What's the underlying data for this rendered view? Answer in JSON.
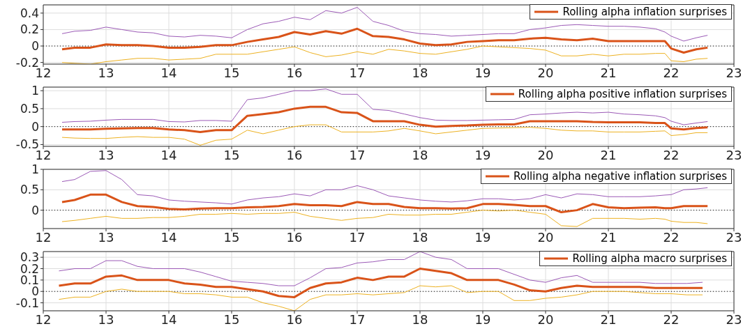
{
  "chart_data": [
    {
      "type": "line",
      "xlim": [
        12,
        23
      ],
      "xticks": [
        12,
        13,
        14,
        15,
        16,
        17,
        18,
        19,
        20,
        21,
        22,
        23
      ],
      "ylim": [
        -0.22,
        0.5
      ],
      "yticks": [
        -0.2,
        0,
        0.2,
        0.4
      ],
      "grid": true,
      "legend": "top right",
      "marker": "none",
      "line_style": "solid",
      "ref_lines": [
        {
          "axis": "y",
          "value": 0,
          "color": "#000000",
          "line_style": "dotted"
        }
      ],
      "x": [
        12.3,
        12.5,
        12.75,
        13,
        13.25,
        13.5,
        13.75,
        14,
        14.25,
        14.5,
        14.75,
        15,
        15.25,
        15.5,
        15.75,
        16,
        16.25,
        16.5,
        16.75,
        17,
        17.25,
        17.5,
        17.75,
        18,
        18.25,
        18.5,
        18.75,
        19,
        19.25,
        19.5,
        19.75,
        20,
        20.25,
        20.5,
        20.75,
        21,
        21.25,
        21.5,
        21.75,
        21.9,
        22,
        22.2,
        22.4,
        22.58
      ],
      "series": [
        {
          "name": "Rolling alpha inflation surprises",
          "color": "#d95319",
          "values": [
            -0.04,
            -0.02,
            -0.02,
            0.02,
            0.01,
            0.01,
            0.0,
            -0.02,
            -0.02,
            -0.01,
            0.01,
            0.01,
            0.05,
            0.08,
            0.11,
            0.17,
            0.14,
            0.18,
            0.15,
            0.21,
            0.12,
            0.11,
            0.08,
            0.03,
            0.01,
            0.02,
            0.05,
            0.06,
            0.07,
            0.07,
            0.09,
            0.1,
            0.08,
            0.07,
            0.09,
            0.06,
            0.06,
            0.06,
            0.06,
            0.06,
            -0.03,
            -0.08,
            -0.04,
            -0.02
          ]
        },
        {
          "color": "#9b59b6",
          "values": [
            0.15,
            0.18,
            0.19,
            0.23,
            0.2,
            0.17,
            0.16,
            0.12,
            0.11,
            0.13,
            0.12,
            0.1,
            0.2,
            0.27,
            0.3,
            0.35,
            0.32,
            0.43,
            0.4,
            0.47,
            0.3,
            0.25,
            0.18,
            0.15,
            0.14,
            0.12,
            0.13,
            0.14,
            0.15,
            0.15,
            0.2,
            0.22,
            0.25,
            0.26,
            0.25,
            0.24,
            0.24,
            0.23,
            0.21,
            0.17,
            0.12,
            0.06,
            0.1,
            0.13
          ]
        },
        {
          "color": "#edb120",
          "values": [
            -0.2,
            -0.21,
            -0.22,
            -0.19,
            -0.17,
            -0.15,
            -0.15,
            -0.17,
            -0.16,
            -0.15,
            -0.1,
            -0.1,
            -0.1,
            -0.07,
            -0.04,
            -0.01,
            -0.08,
            -0.13,
            -0.11,
            -0.07,
            -0.1,
            -0.04,
            -0.06,
            -0.09,
            -0.1,
            -0.07,
            -0.04,
            0.0,
            -0.01,
            -0.02,
            -0.03,
            -0.05,
            -0.12,
            -0.12,
            -0.1,
            -0.12,
            -0.1,
            -0.1,
            -0.09,
            -0.09,
            -0.18,
            -0.19,
            -0.16,
            -0.15
          ]
        }
      ]
    },
    {
      "type": "line",
      "xlim": [
        12,
        23
      ],
      "xticks": [
        12,
        13,
        14,
        15,
        16,
        17,
        18,
        19,
        20,
        21,
        22,
        23
      ],
      "ylim": [
        -0.55,
        1.1
      ],
      "yticks": [
        -0.5,
        0,
        0.5,
        1
      ],
      "grid": true,
      "legend": "top right",
      "marker": "none",
      "line_style": "solid",
      "ref_lines": [
        {
          "axis": "y",
          "value": 0,
          "color": "#000000",
          "line_style": "dotted"
        }
      ],
      "x": [
        12.3,
        12.5,
        12.75,
        13,
        13.25,
        13.5,
        13.75,
        14,
        14.25,
        14.5,
        14.75,
        15,
        15.25,
        15.5,
        15.75,
        16,
        16.25,
        16.5,
        16.75,
        17,
        17.25,
        17.5,
        17.75,
        18,
        18.25,
        18.5,
        18.75,
        19,
        19.25,
        19.5,
        19.75,
        20,
        20.25,
        20.5,
        20.75,
        21,
        21.25,
        21.5,
        21.75,
        21.9,
        22,
        22.2,
        22.4,
        22.58
      ],
      "series": [
        {
          "name": "Rolling alpha positive inflation surprises",
          "color": "#d95319",
          "values": [
            -0.08,
            -0.08,
            -0.08,
            -0.06,
            -0.05,
            -0.04,
            -0.04,
            -0.08,
            -0.1,
            -0.15,
            -0.1,
            -0.1,
            0.3,
            0.35,
            0.4,
            0.5,
            0.55,
            0.55,
            0.4,
            0.38,
            0.15,
            0.15,
            0.15,
            0.05,
            0.0,
            0.02,
            0.03,
            0.05,
            0.06,
            0.06,
            0.15,
            0.15,
            0.15,
            0.15,
            0.13,
            0.12,
            0.12,
            0.12,
            0.1,
            0.1,
            -0.05,
            -0.08,
            -0.04,
            -0.02
          ]
        },
        {
          "color": "#9b59b6",
          "values": [
            0.12,
            0.14,
            0.15,
            0.18,
            0.2,
            0.2,
            0.2,
            0.14,
            0.13,
            0.17,
            0.17,
            0.15,
            0.75,
            0.8,
            0.9,
            1.0,
            1.0,
            1.05,
            0.9,
            0.9,
            0.48,
            0.45,
            0.35,
            0.25,
            0.18,
            0.17,
            0.17,
            0.18,
            0.19,
            0.2,
            0.33,
            0.35,
            0.38,
            0.4,
            0.38,
            0.4,
            0.35,
            0.33,
            0.3,
            0.25,
            0.15,
            0.05,
            0.1,
            0.14
          ]
        },
        {
          "color": "#edb120",
          "values": [
            -0.3,
            -0.32,
            -0.33,
            -0.33,
            -0.3,
            -0.28,
            -0.3,
            -0.3,
            -0.35,
            -0.52,
            -0.38,
            -0.35,
            -0.1,
            -0.2,
            -0.1,
            0.0,
            0.05,
            0.05,
            -0.15,
            -0.15,
            -0.15,
            -0.12,
            -0.05,
            -0.12,
            -0.2,
            -0.15,
            -0.1,
            -0.05,
            -0.04,
            -0.03,
            -0.02,
            -0.05,
            -0.1,
            -0.12,
            -0.12,
            -0.15,
            -0.15,
            -0.15,
            -0.13,
            -0.12,
            -0.25,
            -0.22,
            -0.17,
            -0.17
          ]
        }
      ]
    },
    {
      "type": "line",
      "xlim": [
        12,
        23
      ],
      "xticks": [
        12,
        13,
        14,
        15,
        16,
        17,
        18,
        19,
        20,
        21,
        22,
        23
      ],
      "ylim": [
        -0.45,
        1
      ],
      "yticks": [
        0,
        0.5,
        1
      ],
      "grid": true,
      "legend": "top right",
      "marker": "none",
      "line_style": "solid",
      "ref_lines": [
        {
          "axis": "y",
          "value": 0,
          "color": "#000000",
          "line_style": "dotted"
        }
      ],
      "x": [
        12.3,
        12.5,
        12.75,
        13,
        13.25,
        13.5,
        13.75,
        14,
        14.25,
        14.5,
        14.75,
        15,
        15.25,
        15.5,
        15.75,
        16,
        16.25,
        16.5,
        16.75,
        17,
        17.25,
        17.5,
        17.75,
        18,
        18.25,
        18.5,
        18.75,
        19,
        19.25,
        19.5,
        19.75,
        20,
        20.25,
        20.5,
        20.75,
        21,
        21.25,
        21.5,
        21.75,
        21.9,
        22,
        22.2,
        22.4,
        22.58
      ],
      "series": [
        {
          "name": "Rolling alpha negative inflation surprises",
          "color": "#d95319",
          "values": [
            0.2,
            0.25,
            0.38,
            0.38,
            0.2,
            0.1,
            0.08,
            0.03,
            0.02,
            0.04,
            0.05,
            0.05,
            0.07,
            0.08,
            0.1,
            0.15,
            0.12,
            0.12,
            0.1,
            0.2,
            0.15,
            0.15,
            0.08,
            0.05,
            0.05,
            0.04,
            0.05,
            0.15,
            0.15,
            0.13,
            0.1,
            0.1,
            -0.05,
            0.0,
            0.15,
            0.07,
            0.05,
            0.06,
            0.07,
            0.05,
            0.05,
            0.1,
            0.1,
            0.1
          ]
        },
        {
          "color": "#9b59b6",
          "values": [
            0.7,
            0.75,
            0.95,
            0.97,
            0.75,
            0.38,
            0.35,
            0.25,
            0.22,
            0.2,
            0.18,
            0.15,
            0.25,
            0.3,
            0.33,
            0.4,
            0.35,
            0.5,
            0.5,
            0.6,
            0.5,
            0.35,
            0.3,
            0.25,
            0.22,
            0.2,
            0.23,
            0.28,
            0.28,
            0.25,
            0.28,
            0.38,
            0.3,
            0.4,
            0.38,
            0.33,
            0.33,
            0.33,
            0.35,
            0.37,
            0.38,
            0.5,
            0.52,
            0.55
          ]
        },
        {
          "color": "#edb120",
          "values": [
            -0.28,
            -0.25,
            -0.2,
            -0.15,
            -0.2,
            -0.2,
            -0.18,
            -0.18,
            -0.15,
            -0.1,
            -0.1,
            -0.08,
            -0.1,
            -0.08,
            -0.08,
            -0.05,
            -0.15,
            -0.2,
            -0.25,
            -0.2,
            -0.18,
            -0.1,
            -0.12,
            -0.12,
            -0.1,
            -0.1,
            -0.05,
            0.0,
            -0.02,
            0.0,
            -0.05,
            -0.1,
            -0.38,
            -0.4,
            -0.2,
            -0.2,
            -0.2,
            -0.22,
            -0.2,
            -0.22,
            -0.27,
            -0.3,
            -0.3,
            -0.33
          ]
        }
      ]
    },
    {
      "type": "line",
      "xlim": [
        12,
        23
      ],
      "xticks": [
        12,
        13,
        14,
        15,
        16,
        17,
        18,
        19,
        20,
        21,
        22,
        23
      ],
      "ylim": [
        -0.17,
        0.35
      ],
      "yticks": [
        -0.1,
        0,
        0.1,
        0.2,
        0.3
      ],
      "grid": true,
      "legend": "top right",
      "marker": "none",
      "line_style": "solid",
      "ref_lines": [
        {
          "axis": "y",
          "value": 0,
          "color": "#000000",
          "line_style": "dotted"
        }
      ],
      "x": [
        12.25,
        12.5,
        12.75,
        13,
        13.25,
        13.5,
        13.75,
        14,
        14.25,
        14.5,
        14.75,
        15,
        15.25,
        15.5,
        15.75,
        16,
        16.25,
        16.5,
        16.75,
        17,
        17.25,
        17.5,
        17.75,
        18,
        18.25,
        18.5,
        18.75,
        19,
        19.25,
        19.5,
        19.75,
        20,
        20.25,
        20.5,
        20.75,
        21,
        21.25,
        21.5,
        21.75,
        22,
        22.25,
        22.5
      ],
      "series": [
        {
          "name": "Rolling alpha macro surprises",
          "color": "#d95319",
          "values": [
            0.05,
            0.07,
            0.07,
            0.13,
            0.14,
            0.1,
            0.1,
            0.1,
            0.07,
            0.06,
            0.04,
            0.04,
            0.02,
            0.0,
            -0.04,
            -0.05,
            0.03,
            0.07,
            0.08,
            0.12,
            0.1,
            0.13,
            0.13,
            0.2,
            0.18,
            0.16,
            0.1,
            0.1,
            0.1,
            0.06,
            0.01,
            0.0,
            0.03,
            0.05,
            0.04,
            0.04,
            0.04,
            0.04,
            0.03,
            0.03,
            0.03,
            0.03
          ]
        },
        {
          "color": "#9b59b6",
          "values": [
            0.18,
            0.2,
            0.2,
            0.27,
            0.27,
            0.22,
            0.2,
            0.2,
            0.2,
            0.17,
            0.13,
            0.09,
            0.08,
            0.07,
            0.05,
            0.05,
            0.12,
            0.2,
            0.21,
            0.25,
            0.26,
            0.28,
            0.28,
            0.35,
            0.3,
            0.28,
            0.2,
            0.2,
            0.2,
            0.15,
            0.1,
            0.08,
            0.12,
            0.14,
            0.08,
            0.08,
            0.08,
            0.08,
            0.07,
            0.07,
            0.07,
            0.08
          ]
        },
        {
          "color": "#edb120",
          "values": [
            -0.07,
            -0.05,
            -0.05,
            0.0,
            0.02,
            0.0,
            0.0,
            0.0,
            -0.02,
            -0.02,
            -0.03,
            -0.05,
            -0.05,
            -0.1,
            -0.13,
            -0.17,
            -0.07,
            -0.03,
            -0.03,
            -0.02,
            -0.03,
            -0.02,
            -0.01,
            0.05,
            0.04,
            0.05,
            -0.01,
            0.0,
            0.0,
            -0.08,
            -0.08,
            -0.06,
            -0.05,
            -0.03,
            0.0,
            0.0,
            0.0,
            -0.01,
            -0.02,
            -0.02,
            -0.03,
            -0.03
          ]
        }
      ]
    }
  ]
}
